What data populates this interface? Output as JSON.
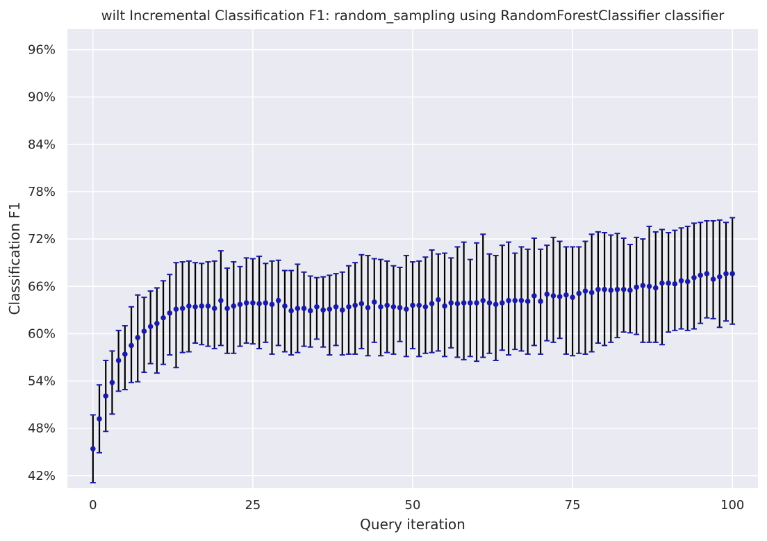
{
  "chart_data": {
    "type": "scatter",
    "title": "wilt Incremental Classification F1: random_sampling using RandomForestClassifier classifier",
    "xlabel": "Query iteration",
    "ylabel": "Classification F1",
    "xlim": [
      -4,
      104
    ],
    "ylim": [
      40.4,
      98.6
    ],
    "xticks": [
      0,
      25,
      50,
      75,
      100
    ],
    "yticks": [
      42,
      48,
      54,
      60,
      66,
      72,
      78,
      84,
      90,
      96
    ],
    "ytick_suffix": "%",
    "grid": true,
    "colors": {
      "point": "#1a1aaa",
      "cap": "#1a1aaa",
      "errorbar": "#000000",
      "plot_bg": "#eaeaf2",
      "grid": "#ffffff"
    },
    "series": [
      {
        "x": [
          0,
          1,
          2,
          3,
          4,
          5,
          6,
          7,
          8,
          9,
          10,
          11,
          12,
          13,
          14,
          15,
          16,
          17,
          18,
          19,
          20,
          21,
          22,
          23,
          24,
          25,
          26,
          27,
          28,
          29,
          30,
          31,
          32,
          33,
          34,
          35,
          36,
          37,
          38,
          39,
          40,
          41,
          42,
          43,
          44,
          45,
          46,
          47,
          48,
          49,
          50,
          51,
          52,
          53,
          54,
          55,
          56,
          57,
          58,
          59,
          60,
          61,
          62,
          63,
          64,
          65,
          66,
          67,
          68,
          69,
          70,
          71,
          72,
          73,
          74,
          75,
          76,
          77,
          78,
          79,
          80,
          81,
          82,
          83,
          84,
          85,
          86,
          87,
          88,
          89,
          90,
          91,
          92,
          93,
          94,
          95,
          96,
          97,
          98,
          99,
          100
        ],
        "y": [
          45.4,
          49.2,
          52.1,
          53.8,
          56.6,
          57.4,
          58.5,
          59.5,
          60.3,
          60.9,
          61.3,
          62.0,
          62.6,
          63.1,
          63.2,
          63.5,
          63.4,
          63.5,
          63.5,
          63.2,
          64.2,
          63.2,
          63.5,
          63.7,
          63.9,
          63.9,
          63.8,
          63.9,
          63.7,
          64.2,
          63.5,
          62.9,
          63.2,
          63.2,
          62.9,
          63.4,
          63.0,
          63.1,
          63.4,
          63.0,
          63.4,
          63.6,
          63.8,
          63.3,
          64.0,
          63.4,
          63.6,
          63.4,
          63.3,
          63.1,
          63.6,
          63.6,
          63.4,
          63.8,
          64.3,
          63.5,
          63.9,
          63.8,
          63.9,
          63.9,
          63.9,
          64.2,
          63.9,
          63.7,
          63.9,
          64.2,
          64.2,
          64.2,
          64.1,
          64.8,
          64.1,
          65.0,
          64.8,
          64.7,
          64.9,
          64.6,
          65.1,
          65.4,
          65.2,
          65.6,
          65.6,
          65.5,
          65.6,
          65.6,
          65.5,
          65.9,
          66.1,
          66.0,
          65.8,
          66.4,
          66.4,
          66.3,
          66.7,
          66.6,
          67.1,
          67.4,
          67.6,
          66.9,
          67.2,
          67.6,
          67.6
        ],
        "y_low": [
          41.1,
          44.9,
          47.6,
          49.8,
          52.7,
          52.9,
          53.8,
          53.9,
          55.1,
          56.2,
          55.0,
          56.1,
          57.3,
          55.7,
          57.6,
          57.7,
          58.8,
          58.6,
          58.4,
          58.1,
          58.5,
          57.5,
          57.5,
          58.4,
          58.8,
          58.7,
          58.1,
          58.9,
          57.4,
          58.5,
          57.7,
          57.3,
          57.6,
          58.4,
          58.3,
          59.3,
          58.3,
          57.3,
          58.5,
          57.3,
          57.4,
          57.4,
          58.1,
          57.2,
          58.9,
          57.2,
          57.6,
          57.4,
          59.0,
          57.1,
          58.1,
          57.1,
          57.5,
          57.6,
          57.8,
          57.1,
          58.2,
          57.0,
          56.7,
          57.1,
          56.5,
          57.0,
          57.5,
          56.6,
          57.9,
          57.3,
          58.0,
          57.8,
          57.4,
          58.5,
          57.4,
          59.1,
          58.9,
          59.4,
          57.4,
          57.2,
          57.5,
          57.4,
          57.7,
          58.8,
          58.5,
          58.9,
          59.5,
          60.2,
          60.1,
          59.9,
          58.9,
          58.9,
          58.9,
          58.6,
          60.2,
          60.4,
          60.6,
          60.4,
          60.6,
          61.3,
          62.0,
          61.9,
          60.8,
          61.6,
          61.2
        ],
        "y_high": [
          49.7,
          53.5,
          56.6,
          57.8,
          60.4,
          61.0,
          63.4,
          64.9,
          64.6,
          65.4,
          65.8,
          66.7,
          67.5,
          69.0,
          69.1,
          69.2,
          69.0,
          68.9,
          69.1,
          69.2,
          70.5,
          68.3,
          69.1,
          68.5,
          69.6,
          69.5,
          69.8,
          68.9,
          69.2,
          69.3,
          68.0,
          68.0,
          68.8,
          67.8,
          67.3,
          67.1,
          67.2,
          67.4,
          67.6,
          67.8,
          68.6,
          69.0,
          70.0,
          69.9,
          69.5,
          69.4,
          69.2,
          68.6,
          68.4,
          69.9,
          69.1,
          69.2,
          69.7,
          70.6,
          70.1,
          70.2,
          69.6,
          71.0,
          71.6,
          69.4,
          71.5,
          72.6,
          70.1,
          69.9,
          71.2,
          71.6,
          70.2,
          71.0,
          70.7,
          72.1,
          70.7,
          71.2,
          72.2,
          71.7,
          71.0,
          71.0,
          71.0,
          71.7,
          72.6,
          72.9,
          72.8,
          72.5,
          72.7,
          72.1,
          71.3,
          72.2,
          72.0,
          73.6,
          72.9,
          73.2,
          72.8,
          73.1,
          73.4,
          73.6,
          74.0,
          74.1,
          74.3,
          74.3,
          74.4,
          74.1,
          74.7
        ]
      }
    ]
  }
}
